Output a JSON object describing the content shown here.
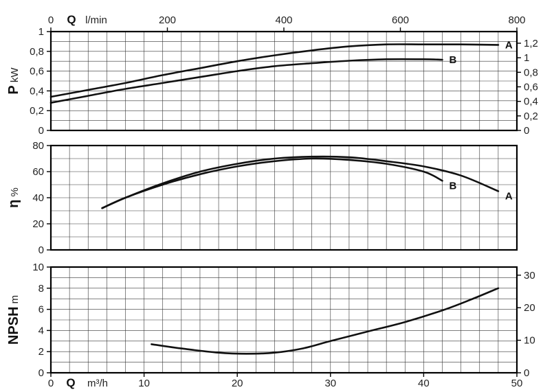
{
  "chart_data": [
    {
      "type": "line",
      "panel": "power",
      "ylabel_symbol": "P",
      "ylabel_unit": "kW",
      "ylim": [
        0,
        1
      ],
      "yticks": [
        "0",
        "0,2",
        "0,4",
        "0,6",
        "0,8",
        "1"
      ],
      "right_yticks": [
        "0",
        "0,2",
        "0,4",
        "0,6",
        "0,8",
        "1",
        "1,2"
      ],
      "right_ylim": [
        0,
        1.36
      ],
      "top_xlabel_symbol": "Q",
      "top_xlabel_unit": "l/min",
      "top_xticks": [
        "0",
        "200",
        "400",
        "600",
        "800"
      ],
      "top_xlim": [
        0,
        800
      ],
      "xlim": [
        0,
        50
      ],
      "grid": true,
      "series": [
        {
          "name": "A",
          "x": [
            0,
            4,
            8,
            12,
            16,
            20,
            24,
            28,
            32,
            36,
            40,
            44,
            48
          ],
          "y": [
            0.34,
            0.41,
            0.48,
            0.56,
            0.63,
            0.7,
            0.76,
            0.81,
            0.85,
            0.87,
            0.87,
            0.87,
            0.865
          ]
        },
        {
          "name": "B",
          "x": [
            0,
            4,
            8,
            12,
            16,
            20,
            24,
            28,
            32,
            36,
            40,
            42
          ],
          "y": [
            0.28,
            0.35,
            0.42,
            0.48,
            0.54,
            0.6,
            0.65,
            0.68,
            0.705,
            0.72,
            0.72,
            0.715
          ]
        }
      ]
    },
    {
      "type": "line",
      "panel": "efficiency",
      "ylabel_symbol": "η",
      "ylabel_unit": "%",
      "ylim": [
        0,
        80
      ],
      "yticks": [
        "0",
        "20",
        "40",
        "60",
        "80"
      ],
      "xlim": [
        0,
        50
      ],
      "grid": true,
      "series": [
        {
          "name": "A",
          "x": [
            5.5,
            8,
            12,
            16,
            20,
            24,
            28,
            32,
            36,
            40,
            44,
            48
          ],
          "y": [
            32,
            40,
            51,
            60,
            66,
            70,
            71.5,
            71,
            68,
            64,
            57,
            45
          ]
        },
        {
          "name": "B",
          "x": [
            5.5,
            8,
            12,
            16,
            20,
            24,
            28,
            32,
            36,
            40,
            42
          ],
          "y": [
            32,
            40,
            50,
            58,
            64,
            68,
            70,
            69,
            66,
            60,
            53
          ]
        }
      ]
    },
    {
      "type": "line",
      "panel": "npsh",
      "ylabel_symbol": "NPSH",
      "ylabel_unit": "m",
      "ylim": [
        0,
        10
      ],
      "yticks": [
        "0",
        "2",
        "4",
        "6",
        "8",
        "10"
      ],
      "right_yticks": [
        "0",
        "10",
        "20",
        "30"
      ],
      "right_ylim": [
        0,
        32.5
      ],
      "xlabel_symbol": "Q",
      "xlabel_unit": "m³/h",
      "xticks": [
        "0",
        "10",
        "20",
        "30",
        "40",
        "50"
      ],
      "xlim": [
        0,
        50
      ],
      "grid": true,
      "series": [
        {
          "name": "",
          "x": [
            10.8,
            14,
            18,
            21,
            24,
            27,
            30,
            34,
            38,
            42,
            45,
            48
          ],
          "y": [
            2.7,
            2.3,
            1.9,
            1.8,
            1.9,
            2.3,
            3.0,
            3.9,
            4.8,
            5.9,
            6.9,
            8.0
          ]
        }
      ]
    }
  ]
}
